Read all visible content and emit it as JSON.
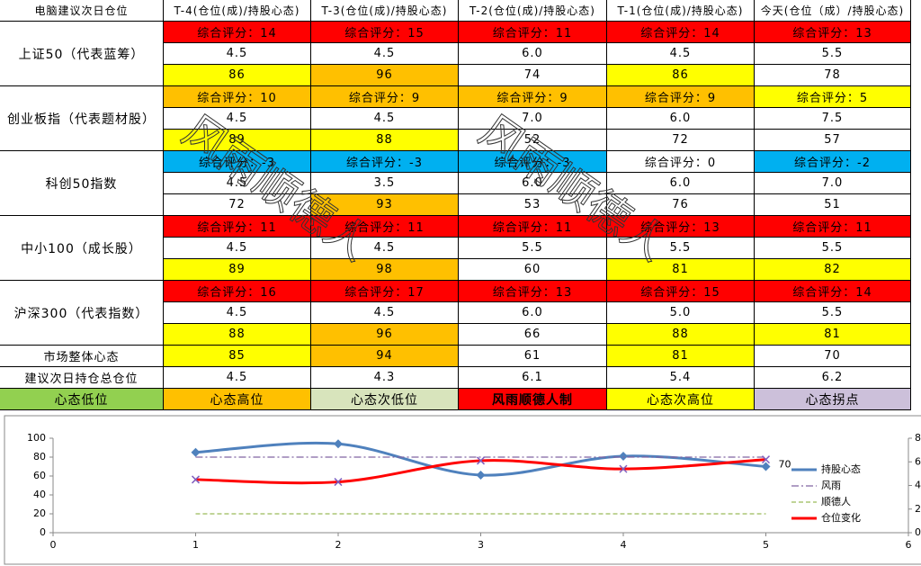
{
  "table": {
    "header": [
      "电脑建议次日仓位",
      "T-4(仓位(成)/持股心态)",
      "T-3(仓位(成)/持股心态)",
      "T-2(仓位(成)/持股心态)",
      "T-1(仓位(成)/持股心态)",
      "今天(仓位（成）/持股心态)"
    ],
    "groups": [
      {
        "name": "上证50（代表蓝筹）",
        "scores": [
          "综合评分：14",
          "综合评分：15",
          "综合评分：11",
          "综合评分：14",
          "综合评分：13"
        ],
        "score_colors": [
          "#ff0000",
          "#ff0000",
          "#ff0000",
          "#ff0000",
          "#ff0000"
        ],
        "positions": [
          "4.5",
          "4.5",
          "6.0",
          "4.5",
          "5.5"
        ],
        "moods": [
          86,
          96,
          74,
          86,
          78
        ],
        "mood_colors": [
          "#ffff00",
          "#ffc000",
          "#ffffff",
          "#ffff00",
          "#ffffff"
        ]
      },
      {
        "name": "创业板指（代表题材股）",
        "scores": [
          "综合评分：10",
          "综合评分：9",
          "综合评分：9",
          "综合评分：9",
          "综合评分：5"
        ],
        "score_colors": [
          "#ffc000",
          "#ffc000",
          "#ffc000",
          "#ffc000",
          "#ffff00"
        ],
        "positions": [
          "4.5",
          "4.5",
          "7.0",
          "6.0",
          "7.5"
        ],
        "moods": [
          89,
          88,
          52,
          72,
          57
        ],
        "mood_colors": [
          "#ffff00",
          "#ffff00",
          "#ffffff",
          "#ffffff",
          "#ffffff"
        ]
      },
      {
        "name": "科创50指数",
        "scores": [
          "综合评分：-3",
          "综合评分：-3",
          "综合评分：-3",
          "综合评分：0",
          "综合评分：-2"
        ],
        "score_colors": [
          "#00b0f0",
          "#00b0f0",
          "#00b0f0",
          "#ffffff",
          "#00b0f0"
        ],
        "positions": [
          "4.5",
          "3.5",
          "6.0",
          "6.0",
          "7.0"
        ],
        "moods": [
          72,
          93,
          53,
          76,
          51
        ],
        "mood_colors": [
          "#ffffff",
          "#ffc000",
          "#ffffff",
          "#ffffff",
          "#ffffff"
        ]
      },
      {
        "name": "中小100（成长股）",
        "scores": [
          "综合评分：11",
          "综合评分：11",
          "综合评分：11",
          "综合评分：13",
          "综合评分：11"
        ],
        "score_colors": [
          "#ff0000",
          "#ff0000",
          "#ff0000",
          "#ff0000",
          "#ff0000"
        ],
        "positions": [
          "4.5",
          "4.5",
          "5.5",
          "5.5",
          "5.5"
        ],
        "moods": [
          89,
          98,
          60,
          81,
          82
        ],
        "mood_colors": [
          "#ffff00",
          "#ffc000",
          "#ffffff",
          "#ffff00",
          "#ffff00"
        ]
      },
      {
        "name": "沪深300（代表指数）",
        "scores": [
          "综合评分：16",
          "综合评分：17",
          "综合评分：13",
          "综合评分：15",
          "综合评分：14"
        ],
        "score_colors": [
          "#ff0000",
          "#ff0000",
          "#ff0000",
          "#ff0000",
          "#ff0000"
        ],
        "positions": [
          "4.5",
          "4.5",
          "6.0",
          "5.0",
          "5.5"
        ],
        "moods": [
          88,
          96,
          66,
          88,
          81
        ],
        "mood_colors": [
          "#ffff00",
          "#ffc000",
          "#ffffff",
          "#ffff00",
          "#ffff00"
        ]
      }
    ],
    "market": {
      "label": "市场整体心态",
      "values": [
        85,
        94,
        61,
        81,
        70
      ],
      "colors": [
        "#ffff00",
        "#ffc000",
        "#ffffff",
        "#ffff00",
        "#ffffff"
      ]
    },
    "suggest": {
      "label": "建议次日持仓总仓位",
      "values": [
        "4.5",
        "4.3",
        "6.1",
        "5.4",
        "6.2"
      ]
    },
    "legend": [
      {
        "label": "心态低位",
        "color": "#92d050"
      },
      {
        "label": "心态高位",
        "color": "#ffc000"
      },
      {
        "label": "心态次低位",
        "color": "#d8e4bc"
      },
      {
        "label": "风雨顺德人制",
        "color": "#ff0000"
      },
      {
        "label": "心态次高位",
        "color": "#ffff00"
      },
      {
        "label": "心态拐点",
        "color": "#ccc0da"
      }
    ],
    "watermark": "风雨顺德人"
  },
  "chart_data": {
    "type": "line",
    "x": [
      1,
      2,
      3,
      4,
      5
    ],
    "xlim": [
      0,
      6
    ],
    "xticks": [
      0,
      1,
      2,
      3,
      4,
      5,
      6
    ],
    "ylim": [
      0,
      100
    ],
    "yticks": [
      0,
      20,
      40,
      60,
      80,
      100
    ],
    "y2lim": [
      0,
      8
    ],
    "y2ticks": [
      0,
      2,
      4,
      6,
      8
    ],
    "series": [
      {
        "name": "持股心态",
        "color": "#4f81bd",
        "values": [
          85,
          94,
          61,
          81,
          70
        ]
      },
      {
        "name": "风雨",
        "color": "#8064a2",
        "values": [
          80,
          80,
          80,
          80,
          80
        ]
      },
      {
        "name": "顺德人",
        "color": "#9bbb59",
        "values": [
          20,
          20,
          20,
          20,
          20
        ]
      },
      {
        "name": "仓位变化",
        "color": "#ff0000",
        "axis": "y2",
        "values": [
          4.5,
          4.3,
          6.1,
          5.4,
          6.2
        ]
      }
    ]
  }
}
